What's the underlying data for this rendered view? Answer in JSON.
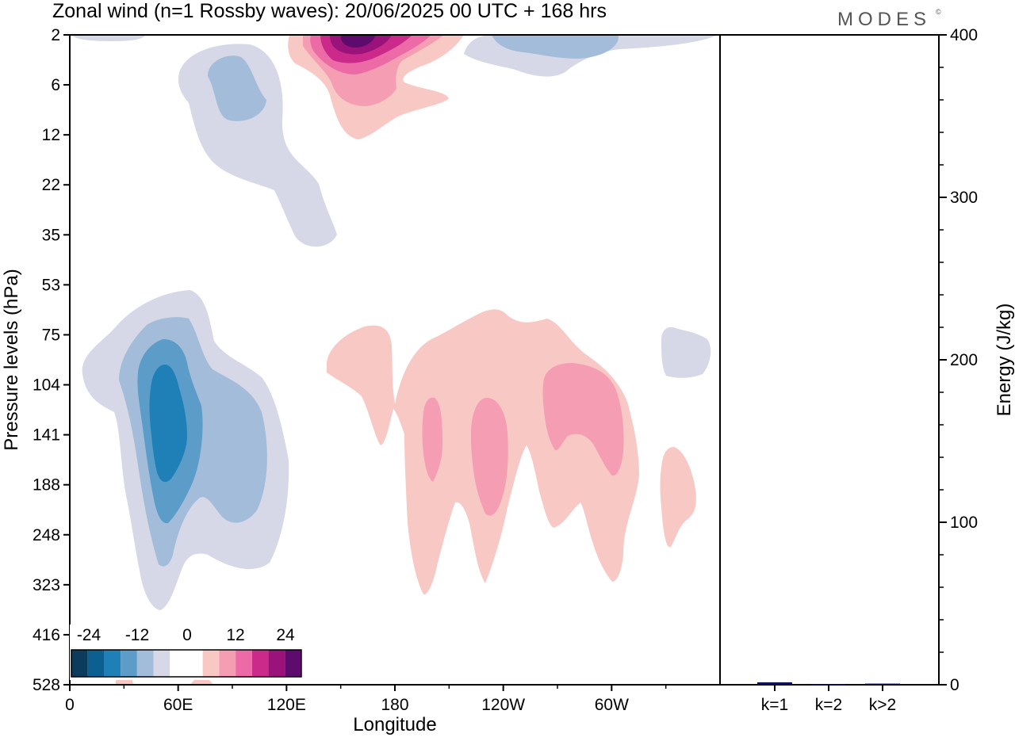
{
  "title": "Zonal wind (n=1 Rossby waves):  20/06/2025  00 UTC  + 168 hrs",
  "logo": "MODES",
  "logo_mark": "©",
  "chart_data": [
    {
      "type": "heatmap",
      "title": "Zonal wind (n=1 Rossby waves):  20/06/2025  00 UTC  + 168 hrs",
      "xlabel": "Longitude",
      "ylabel": "Pressure levels (hPa)",
      "x_ticks": [
        "0",
        "60E",
        "120E",
        "180",
        "120W",
        "60W"
      ],
      "y_ticks": [
        "2",
        "6",
        "12",
        "22",
        "35",
        "53",
        "75",
        "104",
        "141",
        "188",
        "248",
        "323",
        "416",
        "528"
      ],
      "y_scale": "pressure levels, top = 2 hPa, bottom = 528 hPa",
      "colorbar": {
        "tick_labels": [
          "-24",
          "-12",
          "0",
          "12",
          "24"
        ],
        "colors": [
          "#0c3b5e",
          "#0c5f91",
          "#1f80b8",
          "#5b9cc8",
          "#a3bcd9",
          "#d6d8e8",
          "#ffffff",
          "#ffffff",
          "#f8c8c4",
          "#f59db2",
          "#ec6aa5",
          "#cc2a8b",
          "#99137a",
          "#5e0b6e"
        ]
      },
      "features": [
        {
          "sign": "negative",
          "max_level": "-21",
          "lon": 55,
          "pressure": 141
        },
        {
          "sign": "negative",
          "max_level": "-6",
          "lon": 100,
          "pressure": 6
        },
        {
          "sign": "negative",
          "max_level": "-6",
          "lon": 255,
          "pressure": 2
        },
        {
          "sign": "positive",
          "max_level": "24",
          "lon": 160,
          "pressure": 2
        },
        {
          "sign": "positive",
          "max_level": "9",
          "lon": 205,
          "pressure": 141
        },
        {
          "sign": "positive",
          "max_level": "9",
          "lon": 255,
          "pressure": 141
        },
        {
          "sign": "positive",
          "max_level": "9",
          "lon": 285,
          "pressure": 141
        }
      ]
    },
    {
      "type": "bar",
      "categories": [
        "k=1",
        "k=2",
        "k>2"
      ],
      "values": [
        1.5,
        0.4,
        0.7
      ],
      "ylabel": "Energy (J/kg)",
      "ylim": [
        0,
        400
      ],
      "y_ticks": [
        "0",
        "100",
        "200",
        "300",
        "400"
      ],
      "bar_color": "#0a0a80"
    }
  ]
}
